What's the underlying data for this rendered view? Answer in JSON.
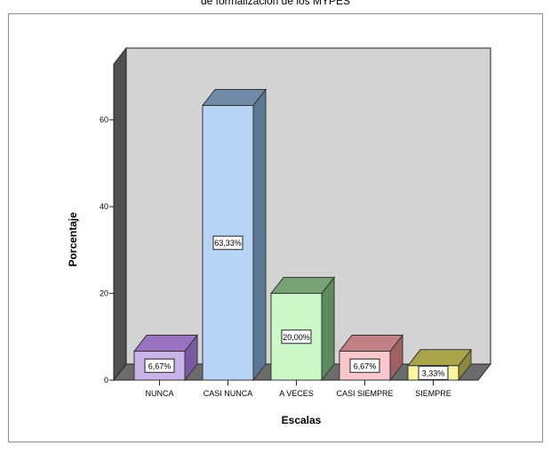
{
  "chart_data": {
    "type": "bar",
    "title": "de formalización de los MYPES",
    "xlabel": "Escalas",
    "ylabel": "Porcentaje",
    "categories": [
      "NUNCA",
      "CASI NUNCA",
      "A VECES",
      "CASI SIEMPRE",
      "SIEMPRE"
    ],
    "values": [
      6.67,
      63.33,
      20.0,
      6.67,
      3.33
    ],
    "data_labels": [
      "6,67%",
      "63,33%",
      "20,00%",
      "6,67%",
      "3,33%"
    ],
    "y_ticks": [
      0,
      20,
      40,
      60
    ],
    "ylim": [
      0,
      70
    ],
    "grid": false,
    "legend": "none",
    "three_d": true,
    "colors": {
      "bars": [
        "#c8b4e8",
        "#b8d4f4",
        "#ccf8c8",
        "#f8c8cc",
        "#f8f4a0"
      ],
      "bar_sides": [
        "#7c5aa0",
        "#5a7896",
        "#5c8a5c",
        "#a06064",
        "#8c8840"
      ],
      "bar_tops": [
        "#9a72c2",
        "#708aa8",
        "#76a276",
        "#c08084",
        "#aaa44a"
      ],
      "back_wall": "#d3d3d3",
      "side_wall": "#505050",
      "floor": "#6c6c6c"
    }
  }
}
